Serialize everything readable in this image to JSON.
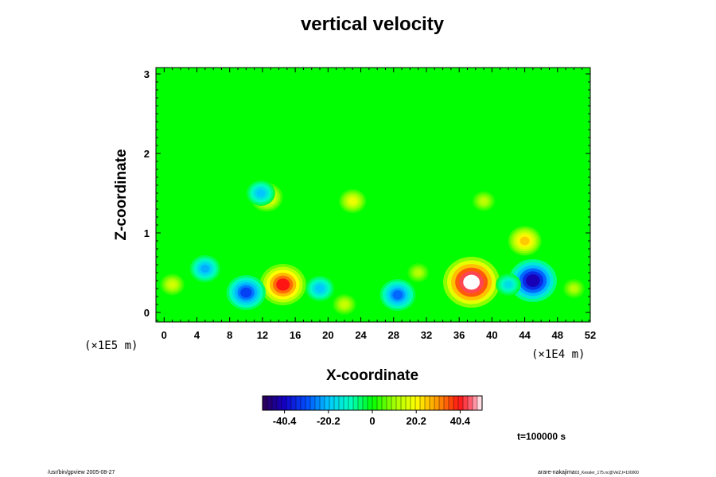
{
  "chart_data": {
    "type": "heatmap",
    "title": "vertical velocity",
    "xlabel": "X-coordinate",
    "ylabel": "Z-coordinate",
    "x_scale_label": "(×1E4 m)",
    "y_scale_label": "(×1E5 m)",
    "x_ticks": [
      0,
      4,
      8,
      12,
      16,
      20,
      24,
      28,
      32,
      36,
      40,
      44,
      48,
      52
    ],
    "y_ticks": [
      0,
      1,
      2,
      3
    ],
    "xlim": [
      -1,
      52
    ],
    "ylim": [
      -0.12,
      3.08
    ],
    "colorbar": {
      "ticks": [
        -40.4,
        -20.2,
        0,
        20.2,
        40.4
      ],
      "tick_labels": [
        "-40.4",
        "-20.2",
        "0",
        "20.2",
        "40.4"
      ],
      "range": [
        -50.5,
        50.5
      ]
    },
    "background_value": 0,
    "features": [
      {
        "x": 14.5,
        "z": 0.35,
        "value": 40,
        "kind": "updraft"
      },
      {
        "x": 37.5,
        "z": 0.38,
        "value": 52,
        "kind": "updraft"
      },
      {
        "x": 10,
        "z": 0.25,
        "value": -32,
        "kind": "downdraft"
      },
      {
        "x": 28.5,
        "z": 0.22,
        "value": -28,
        "kind": "downdraft"
      },
      {
        "x": 45,
        "z": 0.4,
        "value": -42,
        "kind": "downdraft"
      },
      {
        "x": 5,
        "z": 0.55,
        "value": -22,
        "kind": "downdraft"
      },
      {
        "x": 19,
        "z": 0.3,
        "value": -20,
        "kind": "downdraft"
      },
      {
        "x": 22,
        "z": 0.1,
        "value": 14,
        "kind": "updraft"
      },
      {
        "x": 1,
        "z": 0.35,
        "value": 15,
        "kind": "updraft"
      },
      {
        "x": 31,
        "z": 0.5,
        "value": 12,
        "kind": "updraft"
      },
      {
        "x": 42,
        "z": 0.35,
        "value": -16,
        "kind": "downdraft"
      },
      {
        "x": 50,
        "z": 0.3,
        "value": 12,
        "kind": "updraft"
      },
      {
        "x": 12.5,
        "z": 1.45,
        "value": 24,
        "kind": "updraft"
      },
      {
        "x": 11.8,
        "z": 1.5,
        "value": -20,
        "kind": "downdraft"
      },
      {
        "x": 23,
        "z": 1.4,
        "value": 18,
        "kind": "updraft"
      },
      {
        "x": 39,
        "z": 1.4,
        "value": 13,
        "kind": "updraft"
      },
      {
        "x": 44,
        "z": 0.9,
        "value": 25,
        "kind": "updraft"
      }
    ],
    "time_label": "t=100000 s"
  },
  "footer": {
    "left": "/usr/bin/gpview 2005-08-27",
    "right_main": "arare-nakajima",
    "right_sub": "03_Kessler_175.nc@VelZ,t=100000"
  },
  "colors": {
    "background_field": "#00ff00",
    "max": "#ffffff",
    "min": "#2a0050"
  }
}
